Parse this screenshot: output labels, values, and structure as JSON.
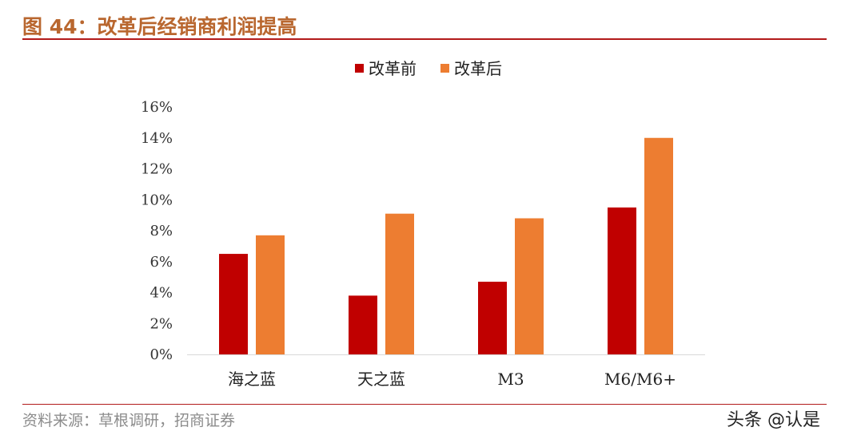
{
  "figure": {
    "title": "图 44：改革后经销商利润提高",
    "source": "资料来源：草根调研，招商证券",
    "watermark": "头条 @认是"
  },
  "chart_data": {
    "type": "bar",
    "categories": [
      "海之蓝",
      "天之蓝",
      "M3",
      "M6/M6+"
    ],
    "series": [
      {
        "name": "改革前",
        "values": [
          6.5,
          3.8,
          4.7,
          9.5
        ],
        "color": "#c00000"
      },
      {
        "name": "改革后",
        "values": [
          7.7,
          9.1,
          8.8,
          14.0
        ],
        "color": "#ed7d31"
      }
    ],
    "ylim": [
      0,
      16
    ],
    "yticks": [
      "0%",
      "2%",
      "4%",
      "6%",
      "8%",
      "10%",
      "12%",
      "14%",
      "16%"
    ],
    "legend_position": "top-center",
    "grid": false
  }
}
